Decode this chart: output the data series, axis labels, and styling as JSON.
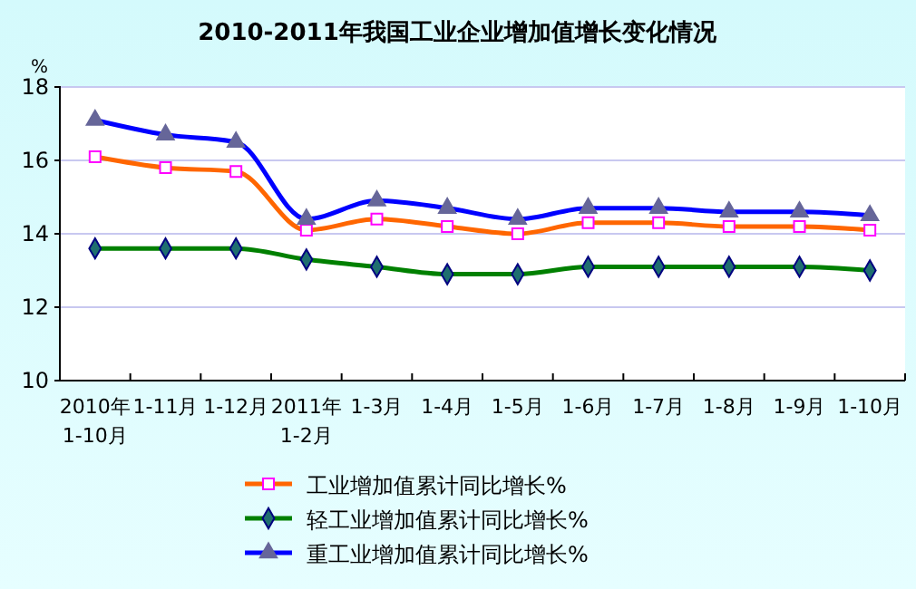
{
  "chart_data": {
    "type": "line",
    "title": "2010-2011年我国工业企业增加值增长变化情况",
    "ylabel": "%",
    "categories": [
      "2010年\n1-10月",
      "1-11月",
      "1-12月",
      "2011年\n1-2月",
      "1-3月",
      "1-4月",
      "1-5月",
      "1-6月",
      "1-7月",
      "1-8月",
      "1-9月",
      "1-10月"
    ],
    "series": [
      {
        "name": "工业增加值累计同比增长%",
        "color": "#ff6600",
        "marker": "square",
        "values": [
          16.1,
          15.8,
          15.7,
          14.1,
          14.4,
          14.2,
          14.0,
          14.3,
          14.3,
          14.2,
          14.2,
          14.1
        ]
      },
      {
        "name": "轻工业增加值累计同比增长%",
        "color": "#008000",
        "marker": "diamond",
        "values": [
          13.6,
          13.6,
          13.6,
          13.3,
          13.1,
          12.9,
          12.9,
          13.1,
          13.1,
          13.1,
          13.1,
          13.0
        ]
      },
      {
        "name": "重工业增加值累计同比增长%",
        "color": "#0000ff",
        "marker": "triangle",
        "values": [
          17.1,
          16.7,
          16.5,
          14.4,
          14.9,
          14.7,
          14.4,
          14.7,
          14.7,
          14.6,
          14.6,
          14.5
        ]
      }
    ],
    "ylim": [
      10,
      18
    ],
    "yticks": [
      10,
      12,
      14,
      16,
      18
    ],
    "grid": "y",
    "legend": "bottom"
  }
}
